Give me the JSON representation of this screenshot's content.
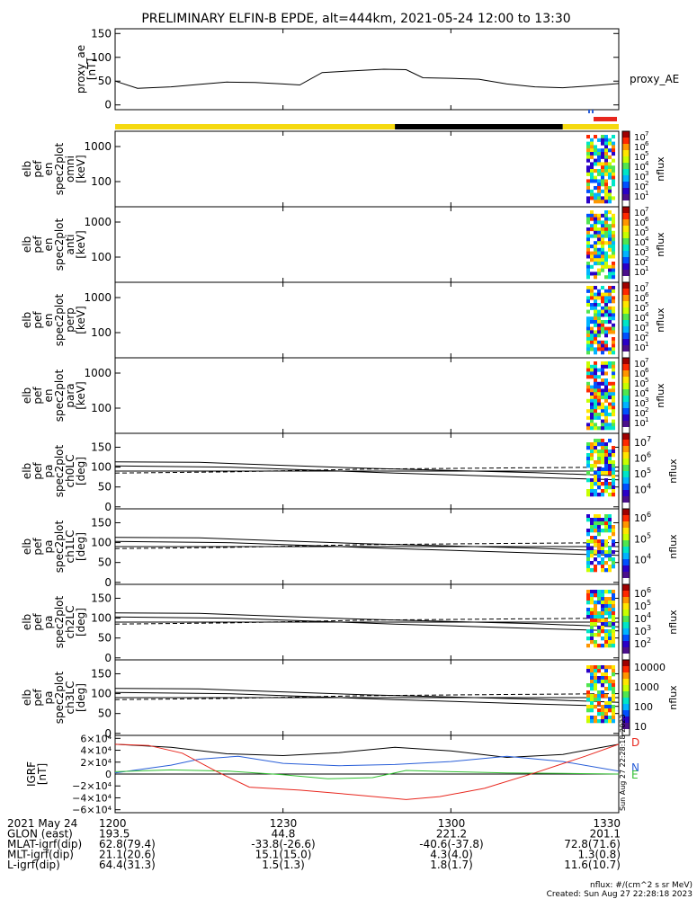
{
  "title": "PRELIMINARY ELFIN-B EPDE, alt=444km, 2021-05-24 12:00 to 13:30",
  "colors": {
    "yellow": "#f5d90f",
    "black": "#000000",
    "red": "#e8271e",
    "blue": "#2a5fd8",
    "cbar": [
      "#ffffff",
      "#4b0f8c",
      "#2a00c8",
      "#0050ff",
      "#00b4ff",
      "#00e6c8",
      "#50e650",
      "#c8ff00",
      "#ffe600",
      "#ff9600",
      "#ff2800",
      "#a00000"
    ]
  },
  "panels": {
    "ae": {
      "ylabel": [
        "proxy_ae",
        "[nT]"
      ],
      "yticks": [
        "150",
        "100",
        "50",
        "0"
      ],
      "series_label": "proxy_AE"
    },
    "spec": [
      {
        "ylabel": [
          "elb",
          "pef",
          "en",
          "spec2plot",
          "omni",
          "[keV]"
        ],
        "yticks": [
          "1000",
          "100"
        ],
        "cb_labels": [
          "10",
          "10",
          "10",
          "10",
          "10",
          "10",
          "10",
          "10"
        ],
        "cb_exps": [
          "7",
          "6",
          "5",
          "4",
          "3",
          "2",
          "1"
        ],
        "cb_title": "nflux"
      },
      {
        "ylabel": [
          "elb",
          "pef",
          "en",
          "spec2plot",
          "anti",
          "[keV]"
        ],
        "yticks": [
          "1000",
          "100"
        ],
        "cb_labels": [
          "10",
          "10",
          "10",
          "10",
          "10",
          "10",
          "10",
          "10"
        ],
        "cb_exps": [
          "7",
          "6",
          "5",
          "4",
          "3",
          "2",
          "1"
        ],
        "cb_title": "nflux"
      },
      {
        "ylabel": [
          "elb",
          "pef",
          "en",
          "spec2plot",
          "perp",
          "[keV]"
        ],
        "yticks": [
          "1000",
          "100"
        ],
        "cb_labels": [
          "10",
          "10",
          "10",
          "10",
          "10",
          "10",
          "10",
          "10"
        ],
        "cb_exps": [
          "7",
          "6",
          "5",
          "4",
          "3",
          "2",
          "1"
        ],
        "cb_title": "nflux"
      },
      {
        "ylabel": [
          "elb",
          "pef",
          "en",
          "spec2plot",
          "para",
          "[keV]"
        ],
        "yticks": [
          "1000",
          "100"
        ],
        "cb_labels": [
          "10",
          "10",
          "10",
          "10",
          "10",
          "10",
          "10",
          "10"
        ],
        "cb_exps": [
          "7",
          "6",
          "5",
          "4",
          "3",
          "2",
          "1"
        ],
        "cb_title": "nflux"
      }
    ],
    "pa": [
      {
        "ylabel": [
          "elb",
          "pef",
          "pa",
          "spec2plot",
          "ch0LC",
          "[deg]"
        ],
        "yticks": [
          "150",
          "100",
          "50",
          "0"
        ],
        "cb_vals": [
          "10",
          "10",
          "10",
          "10"
        ],
        "cb_exps": [
          "7",
          "6",
          "5",
          "4"
        ],
        "cb_title": "nflux"
      },
      {
        "ylabel": [
          "elb",
          "pef",
          "pa",
          "spec2plot",
          "ch1LC",
          "[deg]"
        ],
        "yticks": [
          "150",
          "100",
          "50",
          "0"
        ],
        "cb_vals": [
          "10",
          "10",
          "10"
        ],
        "cb_exps": [
          "6",
          "5",
          "4"
        ],
        "cb_title": "nflux"
      },
      {
        "ylabel": [
          "elb",
          "pef",
          "pa",
          "spec2plot",
          "ch2LC",
          "[deg]"
        ],
        "yticks": [
          "150",
          "100",
          "50",
          "0"
        ],
        "cb_vals": [
          "10",
          "10",
          "10",
          "10",
          "10"
        ],
        "cb_exps": [
          "6",
          "5",
          "4",
          "3",
          "2"
        ],
        "cb_title": "nflux"
      },
      {
        "ylabel": [
          "elb",
          "pef",
          "pa",
          "spec2plot",
          "ch3LC",
          "[deg]"
        ],
        "yticks": [
          "150",
          "100",
          "50",
          "0"
        ],
        "cb_plain": [
          "10000",
          "1000",
          "100",
          "10"
        ],
        "cb_title": "nflux"
      }
    ],
    "igrf": {
      "ylabel": [
        "IGRF",
        "[nT]"
      ],
      "yticks": [
        "6×10⁴",
        "4×10⁴",
        "2×10⁴",
        "0",
        "−2×10⁴",
        "−4×10⁴",
        "−6×10⁴"
      ],
      "legend": [
        "D",
        "N",
        "E"
      ],
      "side_text": "Sun Aug 27 22:28:18 2023"
    }
  },
  "chart_data": {
    "type": "line",
    "time_ticks": [
      "1200",
      "1230",
      "1300",
      "1330"
    ],
    "time_range": [
      "2021-05-24 12:00",
      "2021-05-24 13:30"
    ],
    "proxy_ae": {
      "ylim": [
        0,
        160
      ],
      "t": [
        "12:00",
        "12:04",
        "12:10",
        "12:15",
        "12:20",
        "12:25",
        "12:30",
        "12:33",
        "12:37",
        "12:43",
        "12:48",
        "12:52",
        "12:55",
        "13:00",
        "13:05",
        "13:10",
        "13:15",
        "13:20",
        "13:25",
        "13:30"
      ],
      "y": [
        50,
        35,
        38,
        43,
        48,
        47,
        44,
        42,
        68,
        72,
        75,
        74,
        57,
        56,
        54,
        44,
        38,
        36,
        40,
        45
      ]
    },
    "pa_lines_deg": {
      "solid_upper": {
        "t": [
          "12:00",
          "12:15",
          "12:45",
          "13:15",
          "13:30"
        ],
        "y": [
          113,
          112,
          97,
          86,
          78
        ]
      },
      "solid_lower": {
        "t": [
          "12:00",
          "12:20",
          "12:50",
          "13:15",
          "13:30"
        ],
        "y": [
          103,
          100,
          85,
          74,
          68
        ]
      },
      "dashed": {
        "t": [
          "12:00",
          "12:20",
          "12:45",
          "13:10",
          "13:30"
        ],
        "y": [
          85,
          88,
          95,
          98,
          100
        ]
      },
      "ref": 90
    },
    "igrf_nT": {
      "D_red": {
        "t": [
          "12:00",
          "12:06",
          "12:12",
          "12:18",
          "12:24",
          "12:33",
          "12:43",
          "12:52",
          "12:58",
          "13:06",
          "13:15",
          "13:24",
          "13:30"
        ],
        "y": [
          50000,
          48000,
          35000,
          5000,
          -22000,
          -27000,
          -35000,
          -43000,
          -38000,
          -24000,
          2000,
          30000,
          50000
        ]
      },
      "D_black": {
        "t": [
          "12:00",
          "12:10",
          "12:20",
          "12:30",
          "12:40",
          "12:50",
          "13:00",
          "13:10",
          "13:20",
          "13:30"
        ],
        "y": [
          50000,
          45000,
          34000,
          31000,
          36000,
          45000,
          39000,
          28000,
          33000,
          50000
        ]
      },
      "N_blue": {
        "t": [
          "12:00",
          "12:10",
          "12:15",
          "12:22",
          "12:30",
          "12:40",
          "12:50",
          "13:00",
          "13:10",
          "13:20",
          "13:30"
        ],
        "y": [
          2000,
          15000,
          25000,
          30000,
          18000,
          14000,
          16000,
          21000,
          30000,
          21000,
          5000
        ]
      },
      "E_green": {
        "t": [
          "12:00",
          "12:10",
          "12:20",
          "12:30",
          "12:38",
          "12:46",
          "12:52",
          "13:00",
          "13:10",
          "13:20",
          "13:30"
        ],
        "y": [
          4000,
          7000,
          5000,
          -1000,
          -8000,
          -6000,
          6000,
          4000,
          2000,
          1000,
          0
        ]
      }
    }
  },
  "flags_bar": {
    "segments": [
      {
        "start": "12:00",
        "end": "12:50",
        "color": "yellow"
      },
      {
        "start": "12:50",
        "end": "13:20",
        "color": "black"
      },
      {
        "start": "13:20",
        "end": "13:30",
        "color": "yellow"
      }
    ]
  },
  "footer": {
    "rows": [
      [
        "2021 May 24",
        "1200",
        "1230",
        "1300",
        "1330"
      ],
      [
        "GLON (east)",
        "193.5",
        "44.8",
        "221.2",
        "201.1"
      ],
      [
        "MLAT-igrf(dip)",
        "62.8(79.4)",
        "-33.8(-26.6)",
        "-40.6(-37.8)",
        "72.8(71.6)"
      ],
      [
        "MLT-igrf(dip)",
        "21.1(20.6)",
        "15.1(15.0)",
        "4.3(4.0)",
        "1.3(0.8)"
      ],
      [
        "L-igrf(dip)",
        "64.4(31.3)",
        "1.5(1.3)",
        "1.8(1.7)",
        "11.6(10.7)"
      ]
    ],
    "note1": "nflux: #/(cm^2 s sr MeV)",
    "note2": "Created: Sun Aug 27 22:28:18 2023"
  }
}
